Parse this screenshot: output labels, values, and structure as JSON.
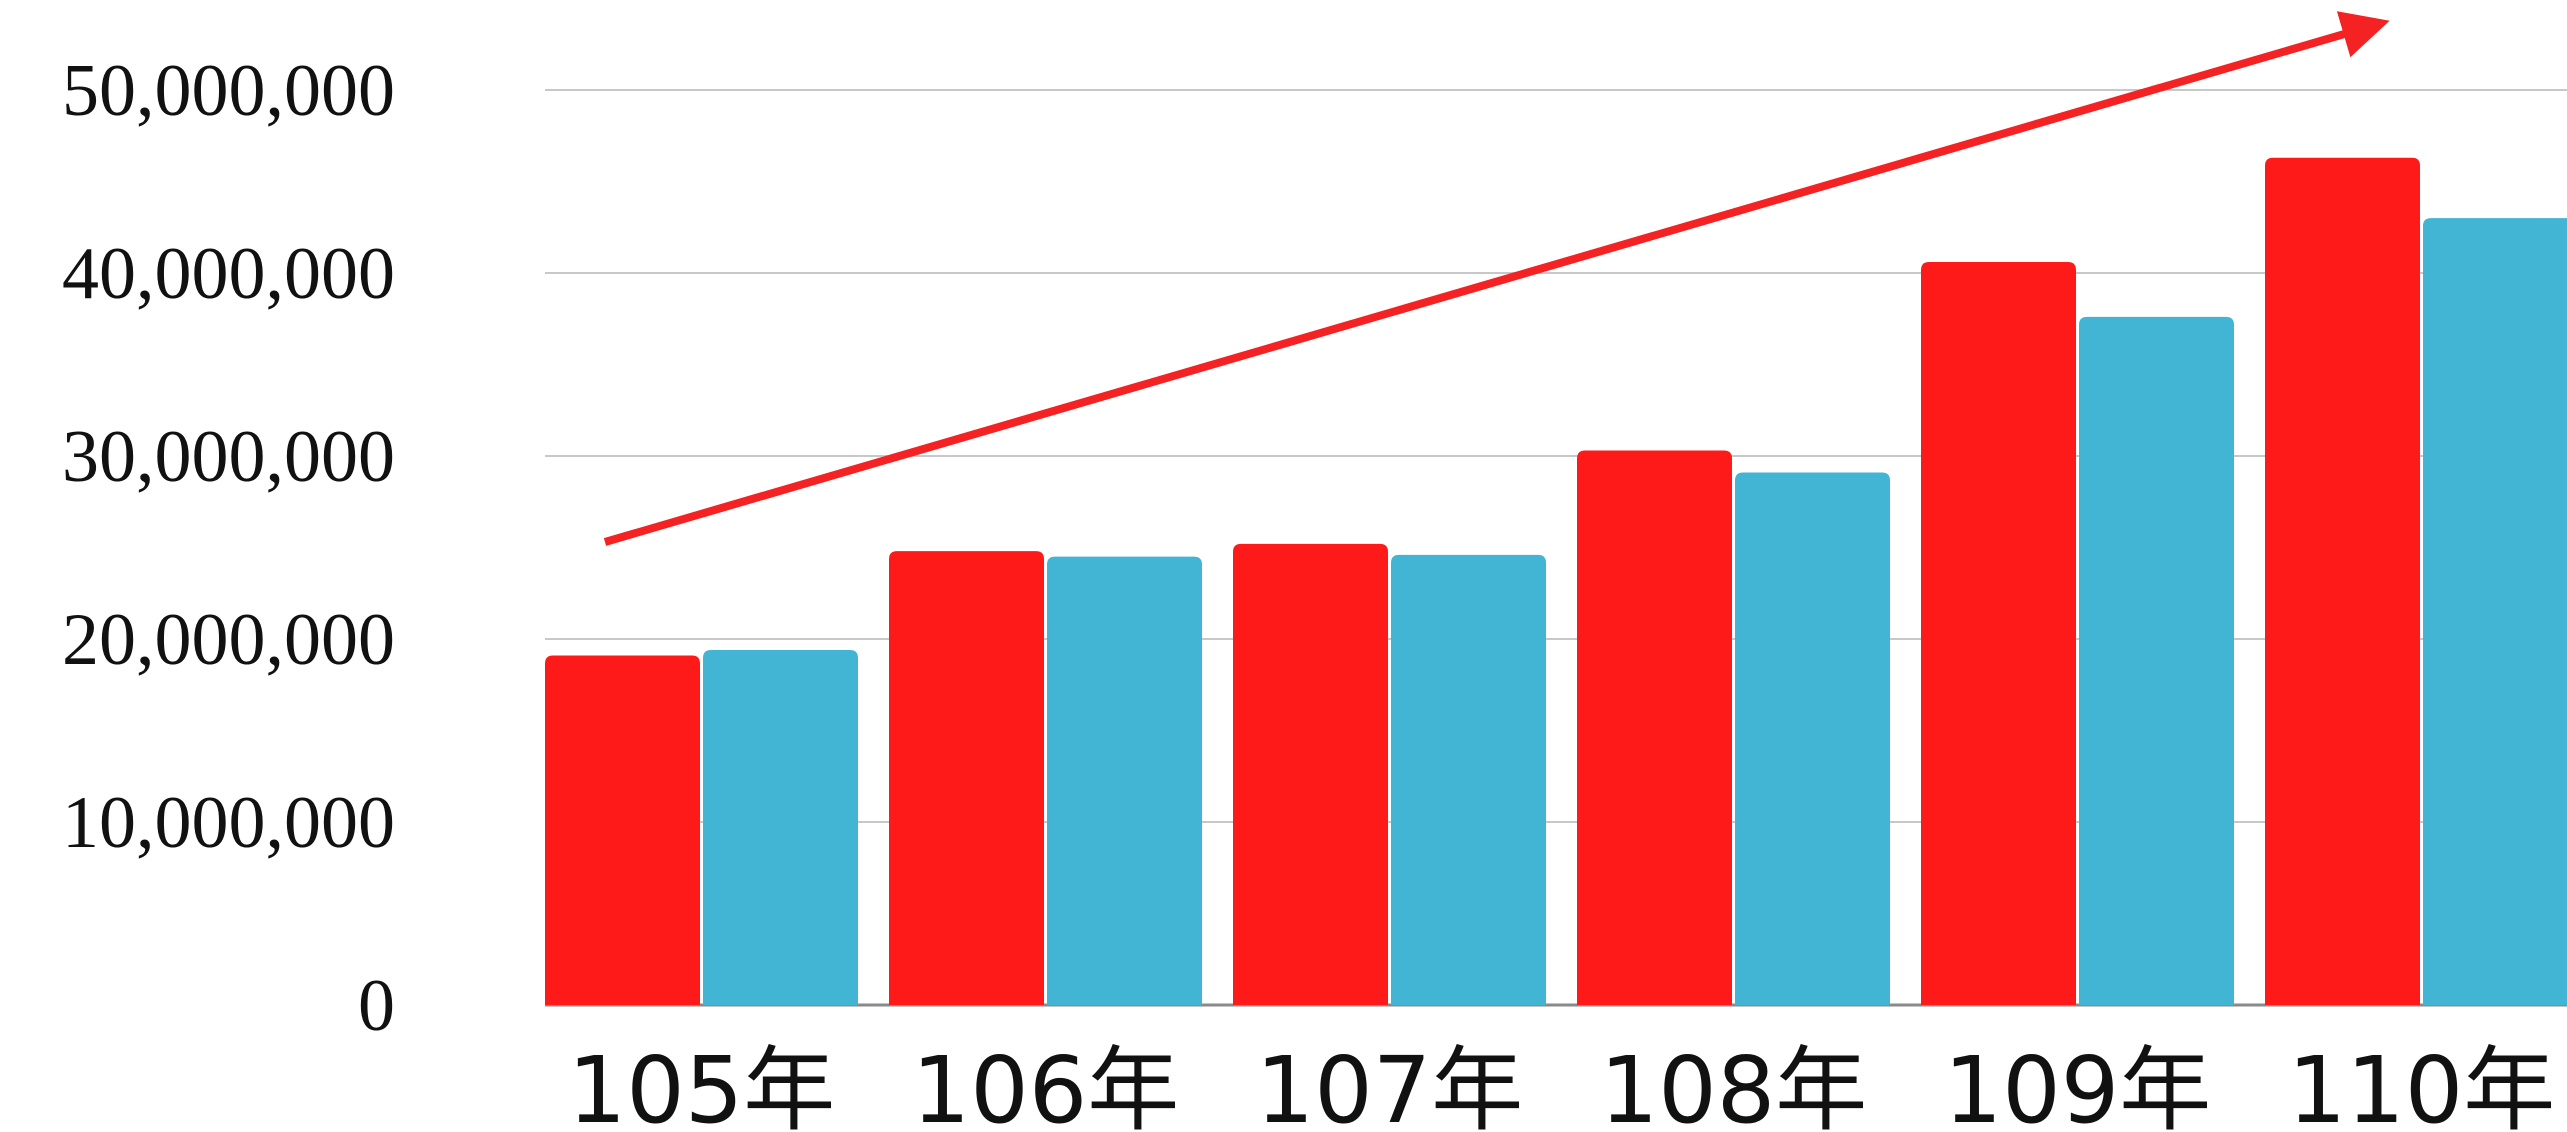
{
  "chart_data": {
    "type": "bar",
    "categories": [
      "105年",
      "106年",
      "107年",
      "108年",
      "109年",
      "110年"
    ],
    "series": [
      {
        "values": [
          19100000,
          24800000,
          25200000,
          30300000,
          40600000,
          46300000
        ]
      },
      {
        "values": [
          19400000,
          24500000,
          24600000,
          29100000,
          37600000,
          43000000
        ]
      }
    ],
    "y_ticks": [
      "0",
      "10,000,000",
      "20,000,000",
      "30,000,000",
      "40,000,000",
      "50,000,000"
    ],
    "ylim": [
      0,
      50000000
    ],
    "grid": true,
    "legend": "none",
    "annotation": "upward trend arrow",
    "title": "",
    "xlabel": "",
    "ylabel": ""
  },
  "colors": {
    "series_1": "#ff1a1a",
    "series_2": "#42b4d4",
    "arrow": "#f42222",
    "grid": "#c8c8c8"
  }
}
